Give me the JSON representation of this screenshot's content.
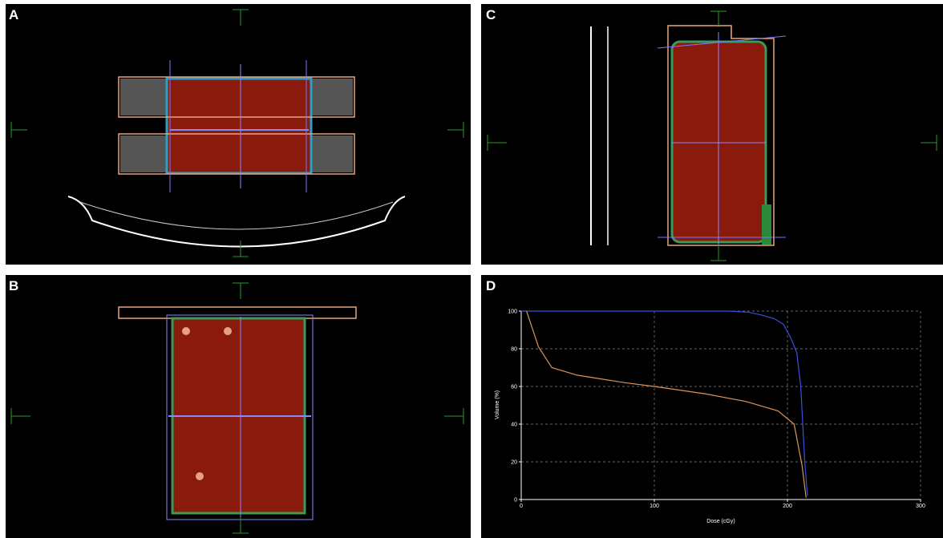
{
  "panel_labels": [
    "A",
    "B",
    "C"
  ],
  "chart_data": {
    "type": "line",
    "panel_label": "D",
    "xlabel": "Dose (cGy)",
    "ylabel": "Volume (%)",
    "xlim": [
      0,
      300
    ],
    "ylim": [
      0,
      100
    ],
    "xticks": [
      0,
      100,
      200,
      300
    ],
    "yticks": [
      0,
      20,
      40,
      60,
      80,
      100
    ],
    "grid": true,
    "series": [
      {
        "color": "#3b4fe0",
        "x": [
          0,
          100,
          155,
          170,
          180,
          190,
          197,
          203,
          207,
          210,
          213,
          215
        ],
        "values": [
          100,
          100,
          100,
          99.5,
          98,
          96,
          93,
          85,
          78,
          60,
          20,
          2
        ]
      },
      {
        "color": "#d9955a",
        "x": [
          4,
          13,
          23,
          42,
          78,
          100,
          139,
          169,
          193,
          205,
          211,
          214
        ],
        "values": [
          100,
          81,
          70,
          66,
          62,
          60,
          56,
          52,
          47,
          40,
          18,
          1
        ]
      }
    ]
  }
}
